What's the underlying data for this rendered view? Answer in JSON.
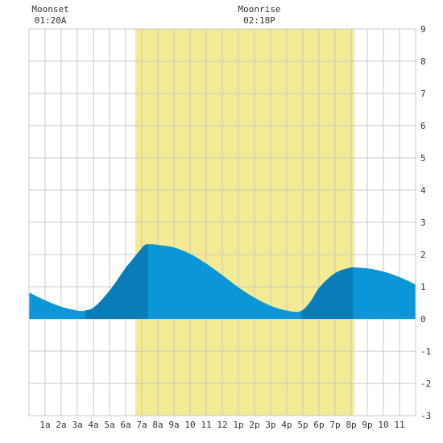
{
  "colors": {
    "daylight": "#f3eb94",
    "tide_light": "#0a96d7",
    "tide_dark": "#0a7db8",
    "grid": "#c8c8c8",
    "text": "#333333",
    "background": "#ffffff"
  },
  "annotations": [
    {
      "title": "Moonset",
      "time": "01:20A",
      "hour": 1.33
    },
    {
      "title": "Moonrise",
      "time": "02:18P",
      "hour": 14.3
    }
  ],
  "chart_data": {
    "type": "area",
    "title": "",
    "xlabel": "",
    "ylabel": "",
    "xlim": [
      0,
      24
    ],
    "ylim": [
      -3,
      9
    ],
    "grid": true,
    "x_tick_labels": [
      "1a",
      "2a",
      "3a",
      "4a",
      "5a",
      "6a",
      "7a",
      "8a",
      "9a",
      "10",
      "11",
      "12",
      "1p",
      "2p",
      "3p",
      "4p",
      "5p",
      "6p",
      "7p",
      "8p",
      "9p",
      "10",
      "11"
    ],
    "y_tick_labels": [
      "-3",
      "-2",
      "-1",
      "0",
      "1",
      "2",
      "3",
      "4",
      "5",
      "6",
      "7",
      "8",
      "9"
    ],
    "daylight": {
      "start_hour": 6.6,
      "end_hour": 20.2
    },
    "dark_bands": [
      [
        3.5,
        7.4
      ],
      [
        16.9,
        20.1
      ]
    ],
    "series": [
      {
        "x": [
          0,
          1,
          2,
          3,
          3.35,
          4,
          5,
          6,
          7,
          7.2,
          7.5,
          8,
          9,
          10,
          11,
          12,
          13,
          14,
          15,
          16,
          16.9,
          17.5,
          18,
          19,
          20,
          20.2,
          21,
          22,
          23,
          24
        ],
        "values": [
          0.82,
          0.58,
          0.38,
          0.26,
          0.25,
          0.35,
          0.88,
          1.58,
          2.2,
          2.3,
          2.32,
          2.3,
          2.22,
          2.02,
          1.72,
          1.36,
          0.98,
          0.66,
          0.41,
          0.26,
          0.25,
          0.56,
          0.96,
          1.42,
          1.6,
          1.6,
          1.57,
          1.47,
          1.3,
          1.07
        ]
      }
    ]
  }
}
